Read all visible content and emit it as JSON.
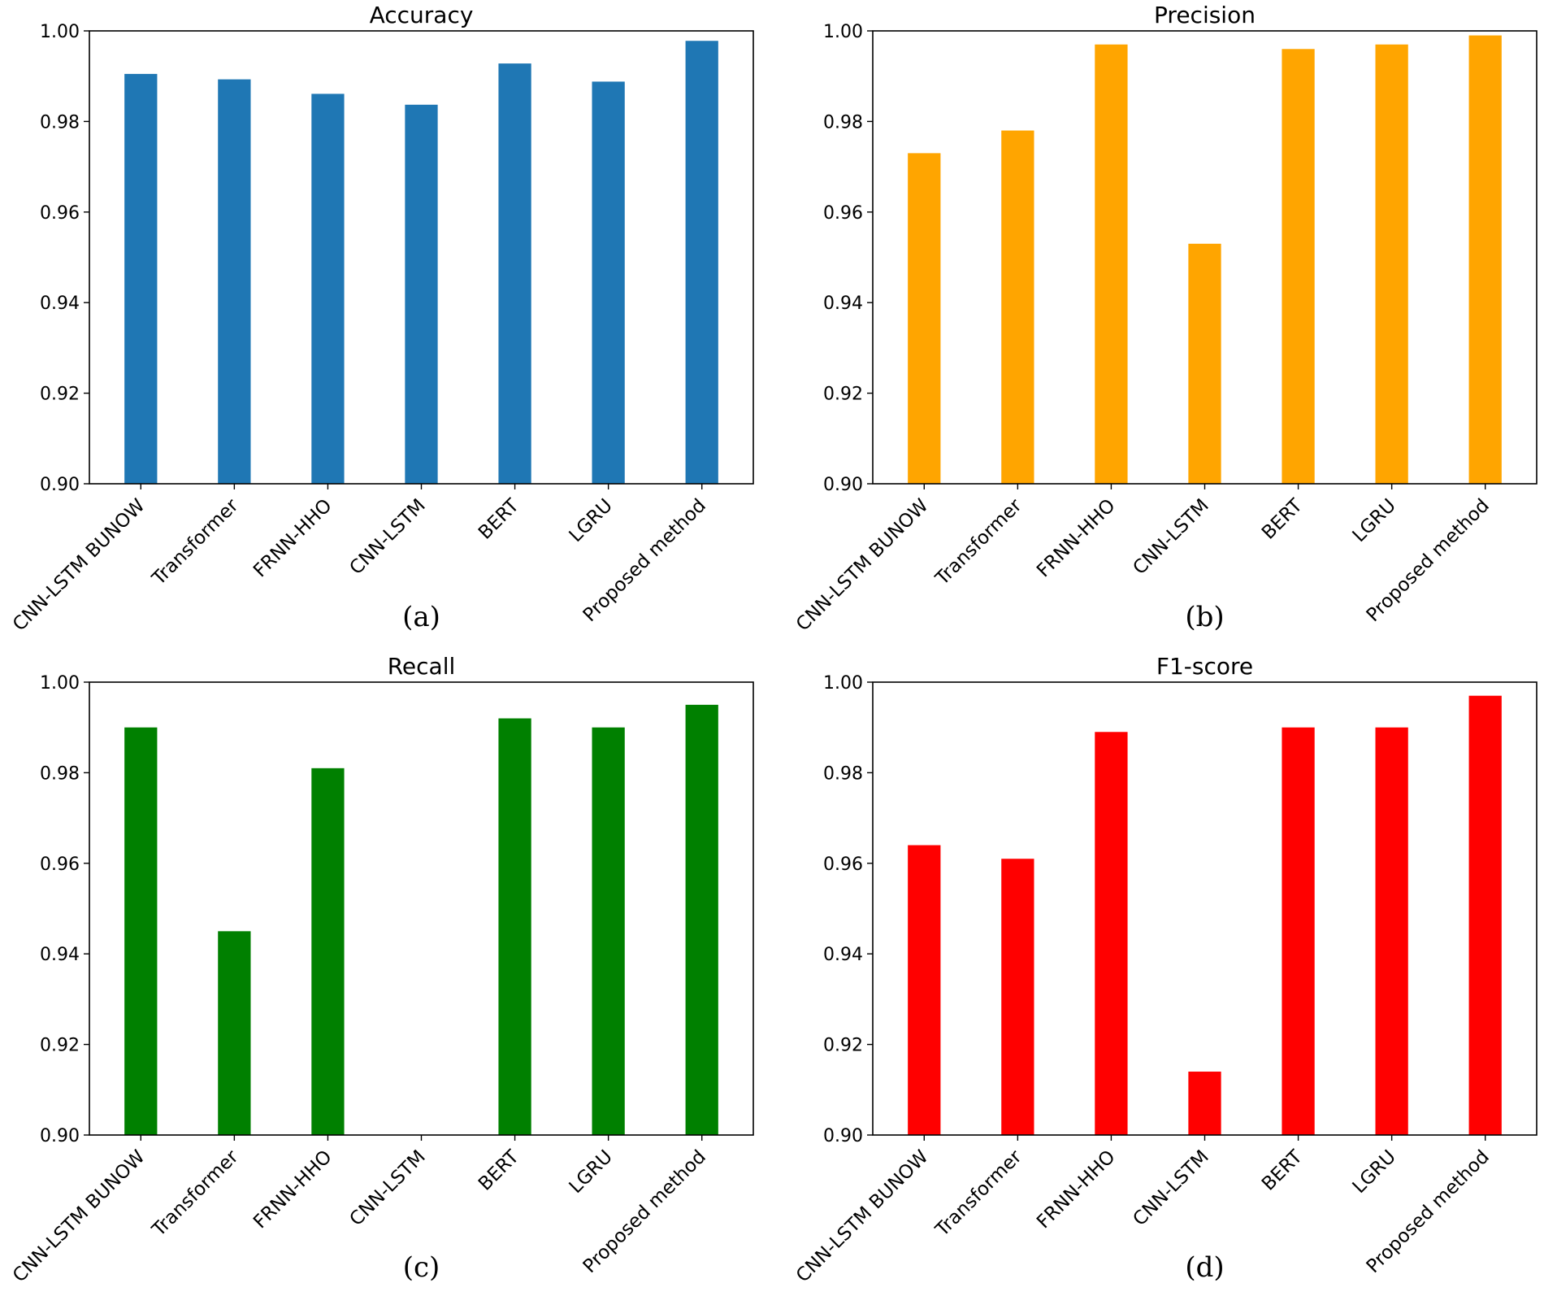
{
  "chart_data": [
    {
      "type": "bar",
      "title": "Accuracy",
      "caption": "(a)",
      "color": "#1f77b4",
      "categories": [
        "CNN-LSTM BUNOW",
        "Transformer",
        "FRNN-HHO",
        "CNN-LSTM",
        "BERT",
        "LGRU",
        "Proposed method"
      ],
      "values": [
        0.9905,
        0.9893,
        0.9861,
        0.9837,
        0.9928,
        0.9888,
        0.9978
      ],
      "ylim": [
        0.9,
        1.0
      ],
      "yticks": [
        "0.90",
        "0.92",
        "0.94",
        "0.96",
        "0.98",
        "1.00"
      ],
      "grid": false
    },
    {
      "type": "bar",
      "title": "Precision",
      "caption": "(b)",
      "color": "#ffa500",
      "categories": [
        "CNN-LSTM BUNOW",
        "Transformer",
        "FRNN-HHO",
        "CNN-LSTM",
        "BERT",
        "LGRU",
        "Proposed method"
      ],
      "values": [
        0.973,
        0.978,
        0.997,
        0.953,
        0.996,
        0.997,
        0.999
      ],
      "ylim": [
        0.9,
        1.0
      ],
      "yticks": [
        "0.90",
        "0.92",
        "0.94",
        "0.96",
        "0.98",
        "1.00"
      ],
      "grid": false
    },
    {
      "type": "bar",
      "title": "Recall",
      "caption": "(c)",
      "color": "#008000",
      "categories": [
        "CNN-LSTM BUNOW",
        "Transformer",
        "FRNN-HHO",
        "CNN-LSTM",
        "BERT",
        "LGRU",
        "Proposed method"
      ],
      "values": [
        0.99,
        0.945,
        0.981,
        0.9,
        0.992,
        0.99,
        0.995
      ],
      "ylim": [
        0.9,
        1.0
      ],
      "yticks": [
        "0.90",
        "0.92",
        "0.94",
        "0.96",
        "0.98",
        "1.00"
      ],
      "grid": false
    },
    {
      "type": "bar",
      "title": "F1-score",
      "caption": "(d)",
      "color": "#ff0000",
      "categories": [
        "CNN-LSTM BUNOW",
        "Transformer",
        "FRNN-HHO",
        "CNN-LSTM",
        "BERT",
        "LGRU",
        "Proposed method"
      ],
      "values": [
        0.964,
        0.961,
        0.989,
        0.914,
        0.99,
        0.99,
        0.997
      ],
      "ylim": [
        0.9,
        1.0
      ],
      "yticks": [
        "0.90",
        "0.92",
        "0.94",
        "0.96",
        "0.98",
        "1.00"
      ],
      "grid": false
    }
  ]
}
